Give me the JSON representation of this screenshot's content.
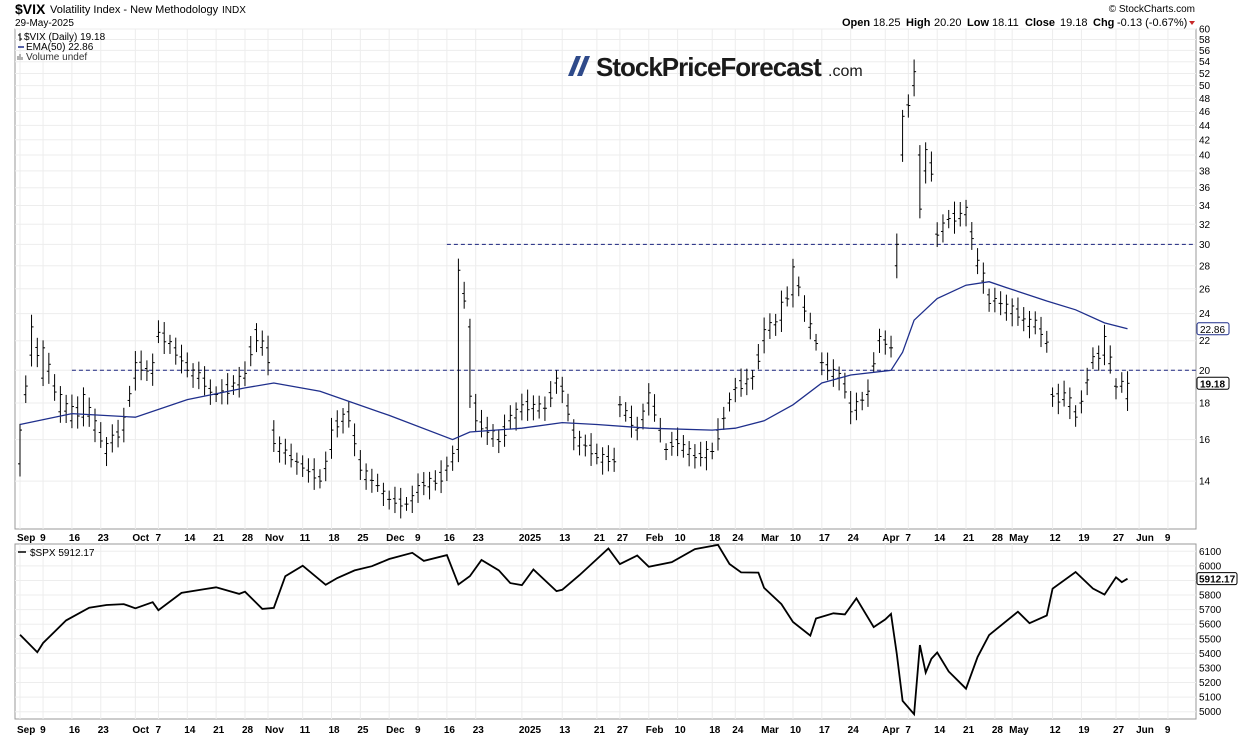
{
  "header": {
    "symbol": "$VIX",
    "name": "Volatility Index - New Methodology",
    "exchange": "INDX",
    "date": "29-May-2025",
    "copyright": "© StockCharts.com",
    "ohlc": {
      "open_label": "Open",
      "open": "18.25",
      "high_label": "High",
      "high": "20.20",
      "low_label": "Low",
      "low": "18.11",
      "close_label": "Close",
      "close": "19.18",
      "chg_label": "Chg",
      "chg": "-0.13 (-0.67%)"
    }
  },
  "watermark": {
    "brand": "StockPriceForecast",
    "tld": ".com"
  },
  "legend_top": [
    {
      "text": "$VIX (Daily) 19.18",
      "swatch": "bar"
    },
    {
      "text": "EMA(50) 22.86",
      "swatch": "line"
    },
    {
      "text": "Volume undef",
      "swatch": "vol"
    }
  ],
  "legend_bottom": "$SPX 5912.17",
  "colors": {
    "ema": "#1f2f8c",
    "dashed": "#1a237e",
    "bars": "#000000",
    "grid": "#ededed",
    "down_arrow": "#c62828"
  },
  "chart_data": [
    {
      "type": "ohlc",
      "ylim": [
        12,
        60
      ],
      "yticks": [
        14,
        16,
        18,
        20,
        22,
        24,
        26,
        28,
        30,
        32,
        34,
        36,
        38,
        40,
        42,
        44,
        46,
        48,
        50,
        52,
        54,
        56,
        58,
        60
      ],
      "yticks_printed": [
        "14",
        "16",
        "18",
        "20",
        "22",
        "24",
        "26",
        "28",
        "30",
        "32",
        "34",
        "36",
        "38",
        "40",
        "42",
        "44",
        "46",
        "48",
        "50",
        "52",
        "54",
        "56",
        "58",
        "60"
      ],
      "price_labels": [
        {
          "value": 22.86,
          "label": "22.86"
        },
        {
          "value": 19.18,
          "label": "19.18"
        }
      ],
      "horizontal_lines": [
        {
          "value": 30,
          "from": "2024-12-16"
        },
        {
          "value": 20,
          "from": "2024-09-16"
        }
      ],
      "x_start": "2024-09-03",
      "x_end": "2025-06-13",
      "x_ticks": [
        [
          "2024-09-03",
          "Sep"
        ],
        [
          "2024-09-09",
          "9"
        ],
        [
          "2024-09-16",
          "16"
        ],
        [
          "2024-09-23",
          "23"
        ],
        [
          "2024-10-01",
          "Oct"
        ],
        [
          "2024-10-07",
          "7"
        ],
        [
          "2024-10-14",
          "14"
        ],
        [
          "2024-10-21",
          "21"
        ],
        [
          "2024-10-28",
          "28"
        ],
        [
          "2024-11-01",
          "Nov"
        ],
        [
          "2024-11-11",
          "11"
        ],
        [
          "2024-11-18",
          "18"
        ],
        [
          "2024-11-25",
          "25"
        ],
        [
          "2024-12-02",
          "Dec"
        ],
        [
          "2024-12-09",
          "9"
        ],
        [
          "2024-12-16",
          "16"
        ],
        [
          "2024-12-23",
          "23"
        ],
        [
          "2025-01-02",
          "2025"
        ],
        [
          "2025-01-13",
          "13"
        ],
        [
          "2025-01-21",
          "21"
        ],
        [
          "2025-01-27",
          "27"
        ],
        [
          "2025-02-03",
          "Feb"
        ],
        [
          "2025-02-10",
          "10"
        ],
        [
          "2025-02-18",
          "18"
        ],
        [
          "2025-02-24",
          "24"
        ],
        [
          "2025-03-03",
          "Mar"
        ],
        [
          "2025-03-10",
          "10"
        ],
        [
          "2025-03-17",
          "17"
        ],
        [
          "2025-03-24",
          "24"
        ],
        [
          "2025-04-01",
          "Apr"
        ],
        [
          "2025-04-07",
          "7"
        ],
        [
          "2025-04-14",
          "14"
        ],
        [
          "2025-04-21",
          "21"
        ],
        [
          "2025-04-28",
          "28"
        ],
        [
          "2025-05-01",
          "May"
        ],
        [
          "2025-05-12",
          "12"
        ],
        [
          "2025-05-19",
          "19"
        ],
        [
          "2025-05-27",
          "27"
        ],
        [
          "2025-06-02",
          "Jun"
        ],
        [
          "2025-06-09",
          "9"
        ]
      ],
      "anchors": [
        [
          "2024-09-03",
          14.8,
          16.5
        ],
        [
          "2024-09-05",
          21.0,
          23.0
        ],
        [
          "2024-09-09",
          19.5,
          21.5
        ],
        [
          "2024-09-12",
          17.5,
          18.5
        ],
        [
          "2024-09-16",
          17.0,
          17.8
        ],
        [
          "2024-09-18",
          17.2,
          18.5
        ],
        [
          "2024-09-20",
          16.5,
          17.0
        ],
        [
          "2024-09-24",
          15.3,
          15.8
        ],
        [
          "2024-09-27",
          16.5,
          17.2
        ],
        [
          "2024-10-01",
          19.5,
          20.5
        ],
        [
          "2024-10-04",
          19.8,
          20.5
        ],
        [
          "2024-10-07",
          22.3,
          22.6
        ],
        [
          "2024-10-10",
          21.5,
          21.0
        ],
        [
          "2024-10-14",
          20.5,
          20.0
        ],
        [
          "2024-10-17",
          19.5,
          19.0
        ],
        [
          "2024-10-21",
          18.5,
          18.5
        ],
        [
          "2024-10-24",
          19.0,
          19.2
        ],
        [
          "2024-10-28",
          19.5,
          19.8
        ],
        [
          "2024-10-30",
          22.8,
          22.0
        ],
        [
          "2024-11-01",
          21.5,
          20.5
        ],
        [
          "2024-11-04",
          16.5,
          15.8
        ],
        [
          "2024-11-07",
          15.2,
          15.0
        ],
        [
          "2024-11-11",
          14.8,
          14.6
        ],
        [
          "2024-11-14",
          14.2,
          14.0
        ],
        [
          "2024-11-18",
          15.5,
          16.5
        ],
        [
          "2024-11-21",
          17.5,
          17.0
        ],
        [
          "2024-11-25",
          15.0,
          14.5
        ],
        [
          "2024-11-28",
          13.8,
          13.8
        ],
        [
          "2024-12-02",
          13.2,
          13.2
        ],
        [
          "2024-12-05",
          13.0,
          13.0
        ],
        [
          "2024-12-09",
          13.5,
          13.8
        ],
        [
          "2024-12-12",
          14.0,
          13.9
        ],
        [
          "2024-12-16",
          14.5,
          14.7
        ],
        [
          "2024-12-18",
          15.5,
          27.6
        ],
        [
          "2024-12-20",
          23.0,
          18.4
        ],
        [
          "2024-12-23",
          18.0,
          17.0
        ],
        [
          "2024-12-27",
          16.0,
          15.9
        ],
        [
          "2024-12-31",
          17.0,
          17.3
        ],
        [
          "2025-01-02",
          17.5,
          17.9
        ],
        [
          "2025-01-08",
          17.7,
          17.7
        ],
        [
          "2025-01-10",
          19.2,
          19.5
        ],
        [
          "2025-01-13",
          19.0,
          18.7
        ],
        [
          "2025-01-15",
          16.5,
          16.1
        ],
        [
          "2025-01-21",
          15.3,
          15.1
        ],
        [
          "2025-01-24",
          15.0,
          14.9
        ],
        [
          "2025-01-27",
          17.9,
          17.9
        ],
        [
          "2025-01-30",
          16.5,
          16.6
        ],
        [
          "2025-02-03",
          18.0,
          18.6
        ],
        [
          "2025-02-06",
          15.5,
          15.5
        ],
        [
          "2025-02-10",
          16.0,
          15.8
        ],
        [
          "2025-02-13",
          15.2,
          15.1
        ],
        [
          "2025-02-18",
          15.4,
          15.4
        ],
        [
          "2025-02-21",
          18.0,
          18.2
        ],
        [
          "2025-02-24",
          18.8,
          18.9
        ],
        [
          "2025-02-27",
          19.5,
          19.6
        ],
        [
          "2025-03-03",
          22.0,
          22.8
        ],
        [
          "2025-03-06",
          23.5,
          24.9
        ],
        [
          "2025-03-10",
          25.5,
          27.9
        ],
        [
          "2025-03-12",
          24.5,
          24.2
        ],
        [
          "2025-03-14",
          22.0,
          21.8
        ],
        [
          "2025-03-17",
          20.5,
          20.5
        ],
        [
          "2025-03-20",
          19.5,
          19.8
        ],
        [
          "2025-03-24",
          18.0,
          17.5
        ],
        [
          "2025-03-27",
          18.5,
          18.7
        ],
        [
          "2025-03-31",
          22.0,
          22.3
        ],
        [
          "2025-04-02",
          21.5,
          21.5
        ],
        [
          "2025-04-03",
          28.0,
          30.0
        ],
        [
          "2025-04-04",
          40.0,
          45.3
        ],
        [
          "2025-04-07",
          47.0,
          46.9
        ],
        [
          "2025-04-08",
          50.0,
          52.3
        ],
        [
          "2025-04-09",
          40.0,
          33.6
        ],
        [
          "2025-04-10",
          38.0,
          40.7
        ],
        [
          "2025-04-11",
          39.0,
          37.6
        ],
        [
          "2025-04-14",
          31.0,
          30.9
        ],
        [
          "2025-04-16",
          32.5,
          32.6
        ],
        [
          "2025-04-21",
          33.0,
          33.8
        ],
        [
          "2025-04-23",
          28.0,
          28.5
        ],
        [
          "2025-04-25",
          25.5,
          24.8
        ],
        [
          "2025-04-28",
          25.0,
          25.2
        ],
        [
          "2025-05-01",
          24.0,
          24.6
        ],
        [
          "2025-05-05",
          23.5,
          23.6
        ],
        [
          "2025-05-07",
          23.0,
          23.5
        ],
        [
          "2025-05-09",
          21.8,
          21.9
        ],
        [
          "2025-05-12",
          18.5,
          18.4
        ],
        [
          "2025-05-14",
          18.2,
          18.6
        ],
        [
          "2025-05-16",
          17.5,
          17.2
        ],
        [
          "2025-05-19",
          18.0,
          18.1
        ],
        [
          "2025-05-21",
          20.5,
          20.9
        ],
        [
          "2025-05-23",
          21.0,
          22.3
        ],
        [
          "2025-05-27",
          19.0,
          18.96
        ],
        [
          "2025-05-28",
          19.0,
          19.3
        ],
        [
          "2025-05-29",
          18.25,
          19.18
        ]
      ],
      "ema_anchors": [
        [
          "2024-09-03",
          16.8
        ],
        [
          "2024-09-16",
          17.4
        ],
        [
          "2024-10-01",
          17.2
        ],
        [
          "2024-10-14",
          18.2
        ],
        [
          "2024-10-28",
          18.9
        ],
        [
          "2024-11-04",
          19.2
        ],
        [
          "2024-11-14",
          18.7
        ],
        [
          "2024-12-02",
          17.3
        ],
        [
          "2024-12-17",
          16.0
        ],
        [
          "2024-12-20",
          16.4
        ],
        [
          "2025-01-02",
          16.6
        ],
        [
          "2025-01-13",
          16.9
        ],
        [
          "2025-01-21",
          16.8
        ],
        [
          "2025-02-03",
          16.6
        ],
        [
          "2025-02-18",
          16.5
        ],
        [
          "2025-02-24",
          16.6
        ],
        [
          "2025-03-03",
          17.0
        ],
        [
          "2025-03-10",
          17.9
        ],
        [
          "2025-03-17",
          19.2
        ],
        [
          "2025-03-24",
          19.7
        ],
        [
          "2025-04-02",
          20.0
        ],
        [
          "2025-04-04",
          21.2
        ],
        [
          "2025-04-08",
          23.5
        ],
        [
          "2025-04-14",
          25.2
        ],
        [
          "2025-04-21",
          26.3
        ],
        [
          "2025-04-25",
          26.6
        ],
        [
          "2025-04-30",
          26.1
        ],
        [
          "2025-05-09",
          25.0
        ],
        [
          "2025-05-16",
          24.3
        ],
        [
          "2025-05-23",
          23.3
        ],
        [
          "2025-05-29",
          22.86
        ]
      ]
    },
    {
      "type": "line",
      "ylim": [
        4950,
        6150
      ],
      "yticks": [
        5000,
        5100,
        5200,
        5300,
        5400,
        5500,
        5600,
        5700,
        5800,
        5900,
        6000,
        6100
      ],
      "yticks_printed": [
        "5000",
        "5100",
        "5200",
        "5300",
        "5400",
        "5500",
        "5600",
        "5700",
        "5800",
        "5900",
        "6000",
        "6100"
      ],
      "price_label": {
        "value": 5912.17,
        "label": "5912.17"
      },
      "points": [
        [
          "2024-09-03",
          5528
        ],
        [
          "2024-09-06",
          5408
        ],
        [
          "2024-09-09",
          5471
        ],
        [
          "2024-09-13",
          5626
        ],
        [
          "2024-09-19",
          5713
        ],
        [
          "2024-09-24",
          5732
        ],
        [
          "2024-09-27",
          5738
        ],
        [
          "2024-10-01",
          5709
        ],
        [
          "2024-10-04",
          5751
        ],
        [
          "2024-10-07",
          5696
        ],
        [
          "2024-10-11",
          5815
        ],
        [
          "2024-10-17",
          5841
        ],
        [
          "2024-10-21",
          5853
        ],
        [
          "2024-10-25",
          5808
        ],
        [
          "2024-10-28",
          5823
        ],
        [
          "2024-10-31",
          5705
        ],
        [
          "2024-11-04",
          5712
        ],
        [
          "2024-11-06",
          5929
        ],
        [
          "2024-11-11",
          6001
        ],
        [
          "2024-11-15",
          5870
        ],
        [
          "2024-11-19",
          5917
        ],
        [
          "2024-11-22",
          5969
        ],
        [
          "2024-11-27",
          5998
        ],
        [
          "2024-12-02",
          6047
        ],
        [
          "2024-12-06",
          6090
        ],
        [
          "2024-12-10",
          6034
        ],
        [
          "2024-12-16",
          6074
        ],
        [
          "2024-12-18",
          5872
        ],
        [
          "2024-12-20",
          5930
        ],
        [
          "2024-12-24",
          6040
        ],
        [
          "2024-12-27",
          5970
        ],
        [
          "2024-12-31",
          5882
        ],
        [
          "2025-01-02",
          5868
        ],
        [
          "2025-01-06",
          5975
        ],
        [
          "2025-01-10",
          5827
        ],
        [
          "2025-01-13",
          5836
        ],
        [
          "2025-01-16",
          5937
        ],
        [
          "2025-01-23",
          6119
        ],
        [
          "2025-01-27",
          6012
        ],
        [
          "2025-01-30",
          6071
        ],
        [
          "2025-02-03",
          5994
        ],
        [
          "2025-02-07",
          6026
        ],
        [
          "2025-02-13",
          6115
        ],
        [
          "2025-02-19",
          6144
        ],
        [
          "2025-02-21",
          6013
        ],
        [
          "2025-02-25",
          5955
        ],
        [
          "2025-02-28",
          5954
        ],
        [
          "2025-03-03",
          5849
        ],
        [
          "2025-03-06",
          5738
        ],
        [
          "2025-03-10",
          5615
        ],
        [
          "2025-03-13",
          5522
        ],
        [
          "2025-03-14",
          5639
        ],
        [
          "2025-03-19",
          5675
        ],
        [
          "2025-03-21",
          5667
        ],
        [
          "2025-03-25",
          5777
        ],
        [
          "2025-03-28",
          5580
        ],
        [
          "2025-04-01",
          5633
        ],
        [
          "2025-04-02",
          5671
        ],
        [
          "2025-04-03",
          5396
        ],
        [
          "2025-04-04",
          5074
        ],
        [
          "2025-04-08",
          4983
        ],
        [
          "2025-04-09",
          5457
        ],
        [
          "2025-04-10",
          5268
        ],
        [
          "2025-04-11",
          5363
        ],
        [
          "2025-04-14",
          5406
        ],
        [
          "2025-04-16",
          5276
        ],
        [
          "2025-04-21",
          5158
        ],
        [
          "2025-04-23",
          5376
        ],
        [
          "2025-04-25",
          5525
        ],
        [
          "2025-05-02",
          5686
        ],
        [
          "2025-05-06",
          5607
        ],
        [
          "2025-05-09",
          5660
        ],
        [
          "2025-05-12",
          5844
        ],
        [
          "2025-05-16",
          5958
        ],
        [
          "2025-05-21",
          5845
        ],
        [
          "2025-05-23",
          5803
        ],
        [
          "2025-05-27",
          5922
        ],
        [
          "2025-05-28",
          5889
        ],
        [
          "2025-05-29",
          5912.17
        ]
      ]
    }
  ]
}
